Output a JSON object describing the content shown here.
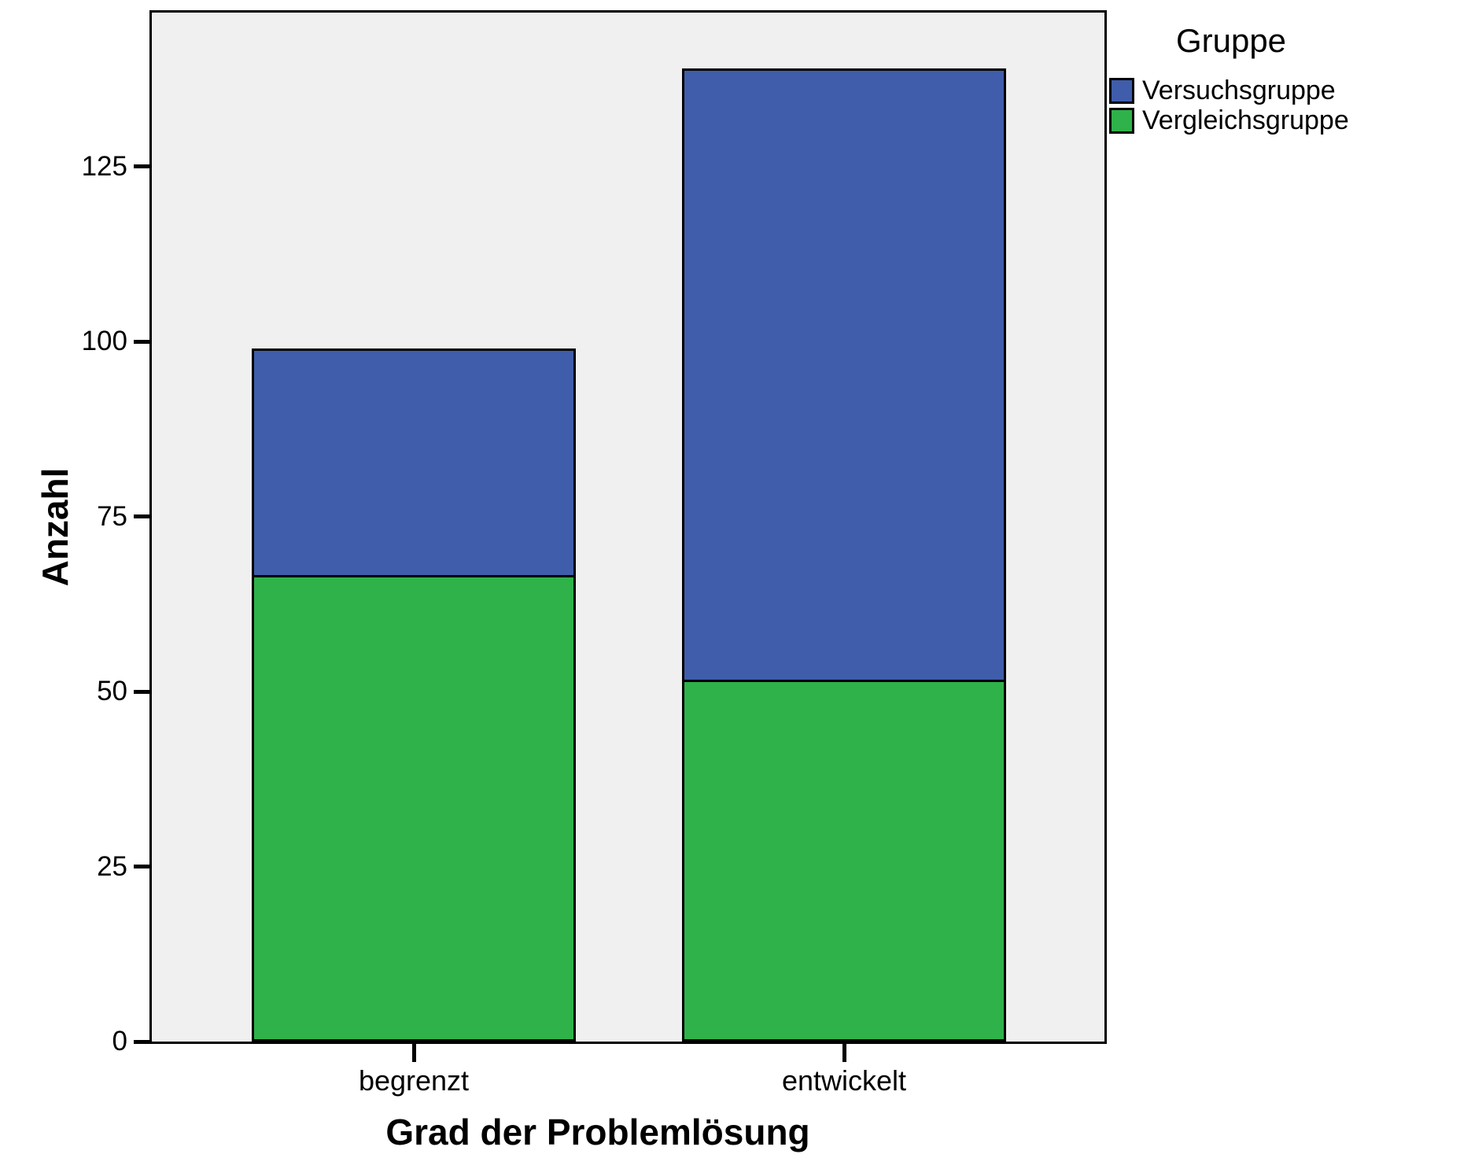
{
  "chart_data": {
    "type": "bar",
    "stacked": true,
    "title": "",
    "xlabel": "Grad der Problemlösung",
    "ylabel": "Anzahl",
    "legend_title": "Gruppe",
    "legend_position": "top-right",
    "categories": [
      "begrenzt",
      "entwickelt"
    ],
    "series": [
      {
        "name": "Versuchsgruppe",
        "color": "#3F5DAA",
        "values": [
          33,
          88
        ],
        "stack": "top"
      },
      {
        "name": "Vergleichsgruppe",
        "color": "#2FB24A",
        "values": [
          66,
          51
        ],
        "stack": "bottom"
      }
    ],
    "totals": [
      99,
      139
    ],
    "y_ticks": [
      0,
      25,
      50,
      75,
      100,
      125
    ],
    "ylim": [
      0,
      147
    ],
    "grid": false,
    "plot_background": "#F0F0F0",
    "border_color": "#000000"
  }
}
